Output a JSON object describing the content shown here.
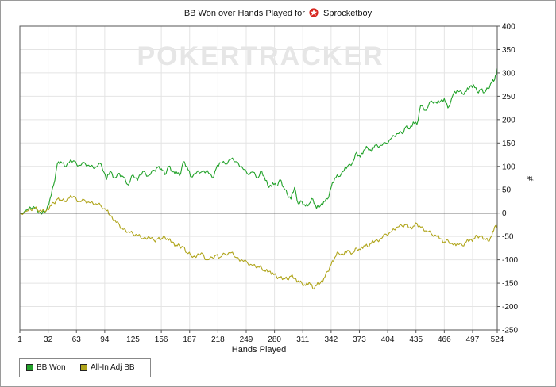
{
  "title": {
    "prefix": "BB Won over Hands Played for",
    "player": "Sprocketboy",
    "icon": "pokerstars-icon"
  },
  "watermark": "POKERTRACKER",
  "legend": [
    {
      "label": "BB Won",
      "color": "#22a22a",
      "icon": "green-square"
    },
    {
      "label": "All-In Adj BB",
      "color": "#b0a51c",
      "icon": "olive-square"
    }
  ],
  "colors": {
    "bb_won": "#22a22a",
    "all_in_adj": "#b0a51c",
    "grid": "#e4e4e4",
    "zero_line": "#000000"
  },
  "chart_data": {
    "type": "line",
    "title": "BB Won over Hands Played for Sprocketboy",
    "xlabel": "Hands Played",
    "ylabel": "#",
    "xlim": [
      1,
      524
    ],
    "ylim": [
      -250,
      400
    ],
    "x_ticks": [
      1,
      32,
      63,
      94,
      125,
      156,
      187,
      218,
      249,
      280,
      311,
      342,
      373,
      404,
      435,
      466,
      497,
      524
    ],
    "y_ticks": [
      400,
      350,
      300,
      250,
      200,
      150,
      100,
      50,
      0,
      -50,
      -100,
      -150,
      -200,
      -250
    ],
    "y_axis_side": "right",
    "grid": true,
    "legend_position": "bottom-left",
    "series": [
      {
        "name": "BB Won",
        "x": [
          1,
          10,
          16,
          20,
          25,
          30,
          34,
          38,
          42,
          46,
          50,
          55,
          60,
          66,
          72,
          78,
          84,
          90,
          96,
          100,
          105,
          110,
          114,
          120,
          125,
          130,
          136,
          142,
          148,
          152,
          156,
          160,
          164,
          168,
          172,
          176,
          180,
          184,
          188,
          194,
          200,
          206,
          212,
          216,
          220,
          226,
          232,
          238,
          244,
          250,
          256,
          262,
          266,
          270,
          274,
          278,
          282,
          286,
          290,
          294,
          298,
          302,
          306,
          310,
          314,
          318,
          322,
          326,
          330,
          334,
          338,
          342,
          346,
          350,
          356,
          360,
          366,
          370,
          374,
          378,
          382,
          386,
          390,
          396,
          402,
          408,
          414,
          420,
          424,
          428,
          432,
          436,
          440,
          446,
          452,
          458,
          462,
          466,
          470,
          476,
          480,
          486,
          490,
          494,
          498,
          502,
          506,
          510,
          514,
          518,
          521,
          524
        ],
        "values": [
          0,
          8,
          14,
          5,
          -2,
          5,
          30,
          60,
          105,
          110,
          100,
          108,
          112,
          102,
          108,
          100,
          98,
          105,
          72,
          90,
          75,
          85,
          78,
          60,
          82,
          70,
          90,
          80,
          92,
          98,
          95,
          82,
          100,
          88,
          90,
          80,
          110,
          100,
          78,
          85,
          88,
          92,
          75,
          95,
          108,
          105,
          115,
          110,
          100,
          85,
          88,
          75,
          90,
          70,
          55,
          65,
          58,
          72,
          55,
          40,
          30,
          55,
          20,
          25,
          15,
          20,
          30,
          10,
          15,
          25,
          30,
          55,
          75,
          78,
          90,
          100,
          110,
          130,
          120,
          135,
          140,
          132,
          145,
          145,
          150,
          160,
          170,
          170,
          185,
          180,
          195,
          190,
          230,
          220,
          240,
          235,
          240,
          245,
          225,
          255,
          262,
          255,
          260,
          270,
          275,
          260,
          265,
          258,
          266,
          280,
          285,
          310
        ]
      },
      {
        "name": "All-In Adj BB",
        "x": [
          1,
          10,
          16,
          20,
          25,
          30,
          34,
          38,
          42,
          46,
          50,
          55,
          60,
          66,
          72,
          78,
          84,
          90,
          96,
          100,
          105,
          110,
          114,
          120,
          125,
          130,
          136,
          142,
          148,
          152,
          156,
          160,
          164,
          168,
          172,
          176,
          180,
          184,
          188,
          194,
          200,
          206,
          212,
          216,
          220,
          226,
          232,
          238,
          244,
          250,
          256,
          262,
          266,
          270,
          274,
          278,
          282,
          286,
          290,
          294,
          298,
          302,
          306,
          310,
          314,
          318,
          322,
          326,
          330,
          334,
          338,
          342,
          346,
          350,
          356,
          360,
          366,
          370,
          374,
          378,
          382,
          386,
          390,
          396,
          402,
          408,
          414,
          420,
          424,
          428,
          432,
          436,
          440,
          446,
          452,
          458,
          462,
          466,
          470,
          476,
          480,
          486,
          490,
          494,
          498,
          502,
          506,
          510,
          514,
          518,
          521,
          524
        ],
        "values": [
          0,
          5,
          10,
          8,
          3,
          5,
          15,
          22,
          30,
          28,
          25,
          32,
          36,
          25,
          28,
          22,
          20,
          15,
          5,
          -5,
          -15,
          -25,
          -35,
          -40,
          -45,
          -48,
          -55,
          -50,
          -58,
          -55,
          -55,
          -52,
          -58,
          -62,
          -68,
          -70,
          -72,
          -85,
          -90,
          -95,
          -85,
          -100,
          -95,
          -90,
          -95,
          -88,
          -85,
          -95,
          -100,
          -105,
          -112,
          -115,
          -118,
          -125,
          -125,
          -128,
          -135,
          -138,
          -140,
          -142,
          -135,
          -140,
          -145,
          -150,
          -155,
          -148,
          -162,
          -155,
          -150,
          -140,
          -125,
          -110,
          -95,
          -85,
          -90,
          -80,
          -85,
          -75,
          -78,
          -70,
          -72,
          -65,
          -60,
          -55,
          -45,
          -40,
          -30,
          -28,
          -25,
          -32,
          -28,
          -22,
          -30,
          -38,
          -45,
          -50,
          -55,
          -62,
          -58,
          -68,
          -66,
          -70,
          -62,
          -58,
          -55,
          -48,
          -50,
          -55,
          -60,
          -50,
          -30,
          -25
        ]
      }
    ]
  }
}
